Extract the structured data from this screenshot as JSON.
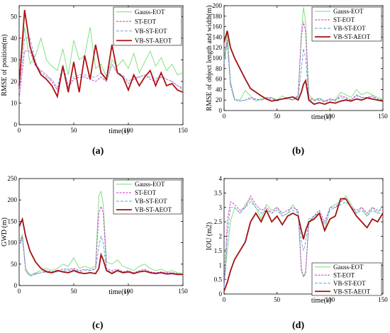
{
  "captions": [
    "(a)",
    "(b)",
    "(c)",
    "(d)"
  ],
  "chart_data": [
    {
      "type": "line",
      "panel": "a",
      "xlabel": "time(s)",
      "ylabel": "RMSE of position(m)",
      "xlim": [
        0,
        150
      ],
      "ylim": [
        0,
        55
      ],
      "xticks": [
        0,
        50,
        100,
        150
      ],
      "yticks": [
        0,
        10,
        20,
        30,
        40,
        50
      ],
      "legend_position": "top-right",
      "grid": false,
      "x": [
        0,
        5,
        10,
        15,
        20,
        25,
        30,
        35,
        40,
        45,
        50,
        55,
        60,
        65,
        70,
        75,
        80,
        85,
        90,
        95,
        100,
        105,
        110,
        115,
        120,
        125,
        130,
        135,
        140,
        145,
        150
      ],
      "series": [
        {
          "name": "Gauss-EOT",
          "color": "#77dd77",
          "values": [
            20,
            45,
            28,
            32,
            40,
            30,
            27,
            25,
            35,
            23,
            39,
            30,
            32,
            45,
            26,
            28,
            22,
            30,
            27,
            30,
            26,
            33,
            24,
            29,
            34,
            27,
            31,
            25,
            28,
            23,
            24
          ]
        },
        {
          "name": "ST-EOT",
          "color": "#cc33cc",
          "values": [
            12,
            34,
            34,
            27,
            25,
            23,
            20,
            16,
            27,
            17,
            21,
            22,
            22,
            21,
            20,
            22,
            20,
            28,
            24,
            22,
            19,
            21,
            22,
            23,
            21,
            20,
            22,
            21,
            20,
            18,
            17
          ]
        },
        {
          "name": "VB-ST-EOT",
          "color": "#7a9ccf",
          "values": [
            15,
            40,
            40,
            29,
            24,
            22,
            21,
            17,
            28,
            18,
            22,
            23,
            23,
            22,
            22,
            24,
            20,
            28,
            24,
            23,
            20,
            22,
            22,
            23,
            22,
            21,
            23,
            21,
            20,
            18,
            16
          ]
        },
        {
          "name": "VB-ST-AEOT",
          "color": "#b01010",
          "values": [
            18,
            53,
            36,
            28,
            23,
            21,
            18,
            13,
            27,
            15,
            29,
            15,
            32,
            21,
            37,
            24,
            21,
            37,
            24,
            22,
            16,
            23,
            18,
            22,
            25,
            18,
            24,
            18,
            19,
            16,
            15
          ]
        }
      ]
    },
    {
      "type": "line",
      "panel": "b",
      "xlabel": "time(s)",
      "ylabel": "RMSE of object length and width(m)",
      "xlim": [
        0,
        150
      ],
      "ylim": [
        0,
        200
      ],
      "xticks": [
        0,
        50,
        100,
        150
      ],
      "yticks": [
        0,
        20,
        40,
        60,
        80,
        100,
        120,
        140,
        160,
        180,
        200
      ],
      "legend_position": "top-right",
      "grid": false,
      "x": [
        0,
        3,
        6,
        10,
        15,
        20,
        25,
        30,
        35,
        40,
        45,
        50,
        55,
        60,
        65,
        70,
        73,
        75,
        77,
        80,
        85,
        90,
        95,
        100,
        105,
        110,
        115,
        120,
        125,
        130,
        135,
        140,
        145,
        150
      ],
      "series": [
        {
          "name": "Gauss-EOT",
          "color": "#77dd77",
          "values": [
            95,
            150,
            55,
            22,
            20,
            38,
            28,
            18,
            22,
            24,
            25,
            20,
            28,
            22,
            20,
            30,
            150,
            197,
            170,
            30,
            20,
            24,
            18,
            22,
            20,
            35,
            30,
            25,
            40,
            30,
            35,
            30,
            25,
            22
          ]
        },
        {
          "name": "ST-EOT",
          "color": "#cc33cc",
          "values": [
            90,
            135,
            50,
            20,
            18,
            20,
            25,
            22,
            20,
            25,
            22,
            20,
            22,
            25,
            20,
            28,
            140,
            170,
            150,
            25,
            20,
            22,
            18,
            22,
            20,
            28,
            25,
            20,
            30,
            25,
            25,
            28,
            22,
            20
          ]
        },
        {
          "name": "VB-ST-EOT",
          "color": "#5aa6d6",
          "values": [
            90,
            130,
            48,
            20,
            18,
            20,
            22,
            20,
            20,
            22,
            25,
            18,
            22,
            22,
            20,
            25,
            80,
            118,
            100,
            22,
            18,
            20,
            16,
            20,
            18,
            25,
            22,
            20,
            28,
            24,
            25,
            26,
            22,
            20
          ]
        },
        {
          "name": "VB-ST-AEOT",
          "color": "#a01010",
          "values": [
            130,
            152,
            120,
            100,
            80,
            60,
            42,
            35,
            28,
            22,
            18,
            20,
            22,
            24,
            26,
            20,
            35,
            50,
            57,
            20,
            12,
            15,
            12,
            16,
            14,
            18,
            20,
            18,
            22,
            20,
            24,
            22,
            20,
            18
          ]
        }
      ]
    },
    {
      "type": "line",
      "panel": "c",
      "xlabel": "time(s)",
      "ylabel": "GWD (m)",
      "xlim": [
        0,
        150
      ],
      "ylim": [
        0,
        250
      ],
      "xticks": [
        0,
        50,
        100,
        150
      ],
      "yticks": [
        0,
        50,
        100,
        150,
        200,
        250
      ],
      "legend_position": "top-right",
      "grid": false,
      "x": [
        0,
        3,
        6,
        10,
        15,
        20,
        25,
        30,
        35,
        40,
        45,
        50,
        55,
        60,
        65,
        70,
        73,
        75,
        77,
        80,
        85,
        90,
        95,
        100,
        105,
        110,
        115,
        120,
        125,
        130,
        135,
        140,
        145,
        150
      ],
      "series": [
        {
          "name": "Gauss-EOT",
          "color": "#77dd77",
          "values": [
            100,
            120,
            40,
            25,
            30,
            35,
            40,
            35,
            40,
            50,
            45,
            65,
            40,
            45,
            40,
            45,
            210,
            220,
            190,
            55,
            50,
            60,
            45,
            40,
            35,
            45,
            50,
            40,
            35,
            38,
            32,
            35,
            30,
            28
          ]
        },
        {
          "name": "ST-EOT",
          "color": "#cc33cc",
          "values": [
            95,
            115,
            35,
            22,
            28,
            30,
            35,
            32,
            35,
            38,
            38,
            40,
            35,
            38,
            36,
            40,
            170,
            185,
            170,
            40,
            35,
            38,
            32,
            35,
            30,
            35,
            38,
            32,
            30,
            32,
            30,
            30,
            28,
            26
          ]
        },
        {
          "name": "VB-ST-EOT",
          "color": "#5aa6d6",
          "values": [
            95,
            110,
            35,
            22,
            26,
            30,
            32,
            30,
            32,
            35,
            35,
            38,
            32,
            35,
            35,
            38,
            90,
            115,
            100,
            36,
            32,
            35,
            30,
            32,
            28,
            33,
            35,
            30,
            28,
            30,
            28,
            28,
            26,
            25
          ]
        },
        {
          "name": "VB-ST-AEOT",
          "color": "#a01010",
          "values": [
            138,
            155,
            115,
            80,
            55,
            40,
            32,
            30,
            35,
            32,
            30,
            35,
            30,
            28,
            30,
            28,
            40,
            72,
            60,
            35,
            28,
            35,
            30,
            32,
            28,
            32,
            34,
            30,
            28,
            30,
            27,
            28,
            26,
            26
          ]
        }
      ]
    },
    {
      "type": "line",
      "panel": "d",
      "xlabel": "time(s)",
      "ylabel": "IOU (m2)",
      "xlim": [
        0,
        150
      ],
      "ylim": [
        0,
        4
      ],
      "xticks": [
        0,
        50,
        100,
        150
      ],
      "yticks": [
        0,
        0.5,
        1,
        1.5,
        2,
        2.5,
        3,
        3.5,
        4
      ],
      "legend_position": "bottom-right",
      "grid": false,
      "x": [
        0,
        3,
        6,
        10,
        15,
        20,
        25,
        30,
        35,
        40,
        45,
        50,
        55,
        60,
        65,
        70,
        73,
        75,
        77,
        80,
        85,
        90,
        95,
        100,
        105,
        110,
        115,
        120,
        125,
        130,
        135,
        140,
        145,
        150
      ],
      "series": [
        {
          "name": "Gauss-EOT",
          "color": "#77dd77",
          "values": [
            0.3,
            1.5,
            2.5,
            3.0,
            2.8,
            3.1,
            3.3,
            3.0,
            2.6,
            3.1,
            2.9,
            3.0,
            2.7,
            2.8,
            3.1,
            2.8,
            0.9,
            0.6,
            0.8,
            2.4,
            2.7,
            2.8,
            2.2,
            3.0,
            3.1,
            3.2,
            3.4,
            3.1,
            2.8,
            3.0,
            2.7,
            3.0,
            2.8,
            3.1
          ]
        },
        {
          "name": "ST-EOT",
          "color": "#cc33cc",
          "values": [
            0.2,
            2.5,
            3.2,
            3.1,
            2.9,
            3.0,
            3.4,
            3.1,
            2.9,
            3.0,
            2.8,
            3.0,
            2.8,
            2.9,
            3.0,
            2.9,
            0.8,
            0.6,
            0.7,
            2.5,
            2.7,
            2.9,
            2.5,
            3.0,
            3.0,
            3.2,
            3.3,
            3.0,
            2.9,
            3.0,
            2.8,
            3.0,
            2.9,
            2.9
          ]
        },
        {
          "name": "VB-ST-EOT",
          "color": "#5aa6d6",
          "values": [
            0.2,
            2.0,
            3.0,
            3.0,
            2.8,
            3.0,
            3.2,
            3.0,
            2.8,
            2.9,
            2.8,
            2.9,
            2.7,
            2.8,
            2.9,
            2.8,
            1.8,
            1.5,
            1.8,
            2.6,
            2.7,
            2.8,
            2.4,
            2.9,
            3.0,
            3.1,
            3.2,
            3.0,
            2.8,
            2.9,
            2.7,
            2.9,
            2.8,
            2.8
          ]
        },
        {
          "name": "VB-ST-AEOT",
          "color": "#a01010",
          "values": [
            0.1,
            0.4,
            0.8,
            1.2,
            1.5,
            1.8,
            2.5,
            2.8,
            2.5,
            2.9,
            2.5,
            2.7,
            2.4,
            2.7,
            2.8,
            2.7,
            2.2,
            1.9,
            2.2,
            2.5,
            2.6,
            2.8,
            2.2,
            2.6,
            2.7,
            3.3,
            3.3,
            3.0,
            2.7,
            2.5,
            2.3,
            2.6,
            2.5,
            2.8
          ]
        }
      ]
    }
  ]
}
